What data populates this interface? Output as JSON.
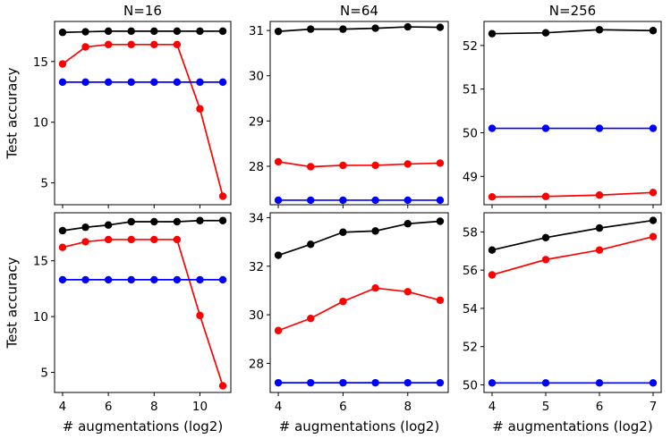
{
  "figure": {
    "background": "#ffffff"
  },
  "colors": {
    "black": "#000000",
    "red": "#ff0000",
    "blue": "#0000ff"
  },
  "chart_data": [
    {
      "type": "line",
      "title": "N=16",
      "xlabel": "",
      "ylabel": "Test accuracy",
      "xlim": [
        3.65,
        11.35
      ],
      "ylim": [
        3.2,
        18.3
      ],
      "xticks": [],
      "yticks": [
        5,
        10,
        15
      ],
      "series": [
        {
          "color": "#000000",
          "x": [
            4,
            5,
            6,
            7,
            8,
            9,
            10,
            11
          ],
          "y": [
            17.4,
            17.45,
            17.5,
            17.5,
            17.5,
            17.5,
            17.5,
            17.5
          ]
        },
        {
          "color": "#ff0000",
          "x": [
            4,
            5,
            6,
            7,
            8,
            9,
            10,
            11
          ],
          "y": [
            14.8,
            16.2,
            16.4,
            16.4,
            16.4,
            16.4,
            11.1,
            3.9
          ]
        },
        {
          "color": "#0000ff",
          "x": [
            4,
            5,
            6,
            7,
            8,
            9,
            10,
            11
          ],
          "y": [
            13.3,
            13.3,
            13.3,
            13.3,
            13.3,
            13.3,
            13.3,
            13.3
          ]
        }
      ]
    },
    {
      "type": "line",
      "title": "N=64",
      "xlabel": "",
      "ylabel": "",
      "xlim": [
        3.75,
        9.25
      ],
      "ylim": [
        27.15,
        31.2
      ],
      "xticks": [],
      "yticks": [
        28,
        29,
        30,
        31
      ],
      "series": [
        {
          "color": "#000000",
          "x": [
            4,
            5,
            6,
            7,
            8,
            9
          ],
          "y": [
            30.98,
            31.03,
            31.03,
            31.05,
            31.08,
            31.07
          ]
        },
        {
          "color": "#ff0000",
          "x": [
            4,
            5,
            6,
            7,
            8,
            9
          ],
          "y": [
            28.1,
            27.99,
            28.02,
            28.02,
            28.05,
            28.07
          ]
        },
        {
          "color": "#0000ff",
          "x": [
            4,
            5,
            6,
            7,
            8,
            9
          ],
          "y": [
            27.25,
            27.25,
            27.25,
            27.25,
            27.25,
            27.25
          ]
        }
      ]
    },
    {
      "type": "line",
      "title": "N=256",
      "xlabel": "",
      "ylabel": "",
      "xlim": [
        3.85,
        7.15
      ],
      "ylim": [
        48.35,
        52.55
      ],
      "xticks": [],
      "yticks": [
        49,
        50,
        51,
        52
      ],
      "series": [
        {
          "color": "#000000",
          "x": [
            4,
            5,
            6,
            7
          ],
          "y": [
            52.27,
            52.29,
            52.36,
            52.34
          ]
        },
        {
          "color": "#ff0000",
          "x": [
            4,
            5,
            6,
            7
          ],
          "y": [
            48.53,
            48.54,
            48.57,
            48.63
          ]
        },
        {
          "color": "#0000ff",
          "x": [
            4,
            5,
            6,
            7
          ],
          "y": [
            50.1,
            50.1,
            50.1,
            50.1
          ]
        }
      ]
    },
    {
      "type": "line",
      "title": "",
      "xlabel": "# augmentations (log2)",
      "ylabel": "Test accuracy",
      "xlim": [
        3.65,
        11.35
      ],
      "ylim": [
        3.2,
        19.3
      ],
      "xticks": [
        4,
        6,
        8,
        10
      ],
      "yticks": [
        5,
        10,
        15
      ],
      "series": [
        {
          "color": "#000000",
          "x": [
            4,
            5,
            6,
            7,
            8,
            9,
            10,
            11
          ],
          "y": [
            17.7,
            18.0,
            18.2,
            18.5,
            18.5,
            18.5,
            18.6,
            18.6
          ]
        },
        {
          "color": "#ff0000",
          "x": [
            4,
            5,
            6,
            7,
            8,
            9,
            10,
            11
          ],
          "y": [
            16.2,
            16.7,
            16.9,
            16.9,
            16.9,
            16.9,
            10.1,
            3.8
          ]
        },
        {
          "color": "#0000ff",
          "x": [
            4,
            5,
            6,
            7,
            8,
            9,
            10,
            11
          ],
          "y": [
            13.3,
            13.3,
            13.3,
            13.3,
            13.3,
            13.3,
            13.3,
            13.3
          ]
        }
      ]
    },
    {
      "type": "line",
      "title": "",
      "xlabel": "# augmentations (log2)",
      "ylabel": "",
      "xlim": [
        3.75,
        9.25
      ],
      "ylim": [
        26.8,
        34.2
      ],
      "xticks": [
        4,
        6,
        8
      ],
      "yticks": [
        28,
        30,
        32,
        34
      ],
      "series": [
        {
          "color": "#000000",
          "x": [
            4,
            5,
            6,
            7,
            8,
            9
          ],
          "y": [
            32.45,
            32.9,
            33.4,
            33.45,
            33.75,
            33.85
          ]
        },
        {
          "color": "#ff0000",
          "x": [
            4,
            5,
            6,
            7,
            8,
            9
          ],
          "y": [
            29.35,
            29.85,
            30.55,
            31.1,
            30.95,
            30.6
          ]
        },
        {
          "color": "#0000ff",
          "x": [
            4,
            5,
            6,
            7,
            8,
            9
          ],
          "y": [
            27.2,
            27.2,
            27.2,
            27.2,
            27.2,
            27.2
          ]
        }
      ]
    },
    {
      "type": "line",
      "title": "",
      "xlabel": "# augmentations (log2)",
      "ylabel": "",
      "xlim": [
        3.85,
        7.15
      ],
      "ylim": [
        49.6,
        59.0
      ],
      "xticks": [
        4,
        5,
        6,
        7
      ],
      "yticks": [
        50,
        52,
        54,
        56,
        58
      ],
      "series": [
        {
          "color": "#000000",
          "x": [
            4,
            5,
            6,
            7
          ],
          "y": [
            57.05,
            57.7,
            58.2,
            58.6
          ]
        },
        {
          "color": "#ff0000",
          "x": [
            4,
            5,
            6,
            7
          ],
          "y": [
            55.75,
            56.55,
            57.05,
            57.75
          ]
        },
        {
          "color": "#0000ff",
          "x": [
            4,
            5,
            6,
            7
          ],
          "y": [
            50.1,
            50.1,
            50.1,
            50.1
          ]
        }
      ]
    }
  ]
}
